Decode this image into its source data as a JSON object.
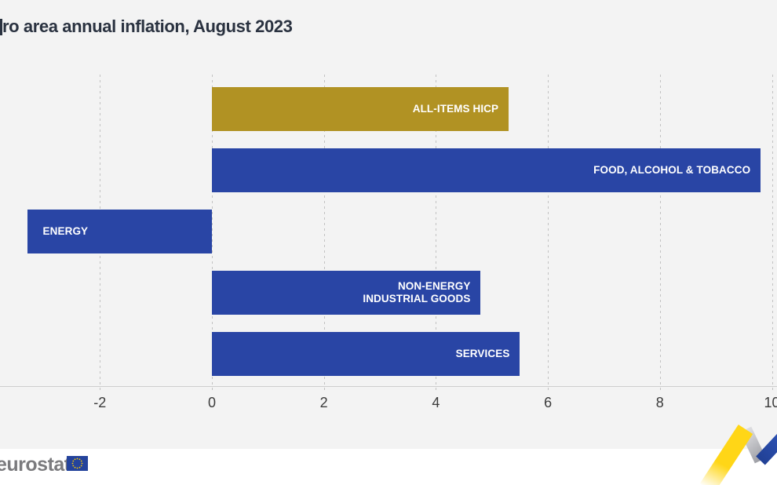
{
  "title": "ro area annual inflation, August 2023",
  "chart_data": {
    "type": "bar",
    "orientation": "horizontal",
    "title": "ro area annual inflation, August 2023",
    "categories": [
      "ALL-ITEMS HICP",
      "FOOD, ALCOHOL & TOBACCO",
      "ENERGY",
      "NON-ENERGY\nINDUSTRIAL GOODS",
      "SERVICES"
    ],
    "values": [
      5.3,
      9.8,
      -3.3,
      4.8,
      5.5
    ],
    "bar_colors": [
      "#b19223",
      "#2945a5",
      "#2945a5",
      "#2945a5",
      "#2945a5"
    ],
    "xticks": [
      -2,
      0,
      2,
      4,
      6,
      8,
      10
    ],
    "xlim": [
      -3.8,
      10.1
    ],
    "grid": "dashed-vertical-gridlines",
    "legend": "none",
    "value_labels": "category names inside bars"
  },
  "footer": {
    "logo_text": "eurostat",
    "flag_icon": "eu-flag-icon",
    "decoration_icon": "zigzag-trend-icon"
  },
  "colors": {
    "background": "#f3f3f3",
    "footer_background": "#ffffff",
    "bar_blue": "#2945a5",
    "bar_gold": "#b19223",
    "title_text": "#2a3240",
    "axis_text": "#3b3b3b",
    "gridline": "#c2c2c2",
    "axis_line": "#cdcdcd",
    "eurostat_gray": "#7b7b7e",
    "eu_flag_blue": "#24439c",
    "star_yellow": "#ffcc00",
    "zigzag_yellow": "#ffd617",
    "zigzag_gray": "#b9b9bf",
    "zigzag_blue": "#2d51b4"
  }
}
